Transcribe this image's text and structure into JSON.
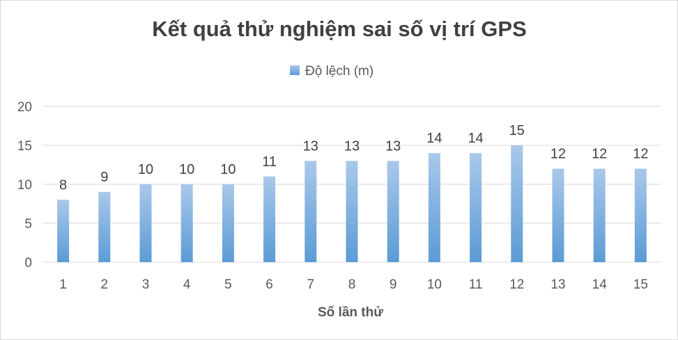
{
  "chart_data": {
    "type": "bar",
    "title": "Kết quả thử nghiệm sai số vị trí GPS",
    "xlabel": "Số lần thử",
    "ylabel": "",
    "categories": [
      "1",
      "2",
      "3",
      "4",
      "5",
      "6",
      "7",
      "8",
      "9",
      "10",
      "11",
      "12",
      "13",
      "14",
      "15"
    ],
    "series": [
      {
        "name": "Độ lệch (m)",
        "values": [
          8,
          9,
          10,
          10,
          10,
          11,
          13,
          13,
          13,
          14,
          14,
          15,
          12,
          12,
          12
        ]
      }
    ],
    "ylim": [
      0,
      20
    ],
    "yticks": [
      0,
      5,
      10,
      15,
      20
    ],
    "grid": true,
    "legend": "top",
    "data_labels": true,
    "colors": {
      "bar_top": "#a9c8ea",
      "bar_bottom": "#5b9bd5",
      "grid": "#d9d9d9"
    }
  }
}
